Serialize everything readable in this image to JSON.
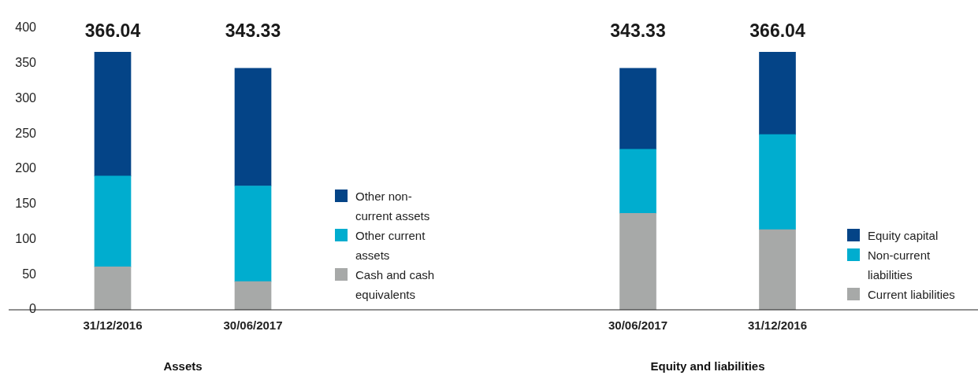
{
  "chart_data": [
    {
      "type": "bar",
      "stacked": true,
      "xlabel": "Assets",
      "categories": [
        "31/12/2016",
        "30/06/2017"
      ],
      "series": [
        {
          "name": "Cash and cash equivalents",
          "color": "#a7a9a8",
          "values": [
            61,
            40
          ]
        },
        {
          "name": "Other current assets",
          "color": "#00adcf",
          "values": [
            129,
            136
          ]
        },
        {
          "name": "Other non-current assets",
          "color": "#044487",
          "values": [
            176.04,
            167.33
          ]
        }
      ],
      "totals": [
        "366.04",
        "343.33"
      ],
      "ylim": [
        0,
        400
      ],
      "yticks": [
        0,
        50,
        100,
        150,
        200,
        250,
        300,
        350,
        400
      ],
      "grid": false,
      "legend": "right"
    },
    {
      "type": "bar",
      "stacked": true,
      "xlabel": "Equity and liabilities",
      "categories": [
        "30/06/2017",
        "31/12/2016"
      ],
      "series": [
        {
          "name": "Current liabilities",
          "color": "#a7a9a8",
          "values": [
            137,
            114
          ]
        },
        {
          "name": "Non-current liabilities",
          "color": "#00adcf",
          "values": [
            91,
            135
          ]
        },
        {
          "name": "Equity capital",
          "color": "#044487",
          "values": [
            115.33,
            117.04
          ]
        }
      ],
      "totals": [
        "343.33",
        "366.04"
      ],
      "ylim": [
        0,
        400
      ],
      "yticks": [
        0,
        50,
        100,
        150,
        200,
        250,
        300,
        350,
        400
      ],
      "grid": false,
      "legend": "right",
      "tick_labels": "x"
    }
  ]
}
